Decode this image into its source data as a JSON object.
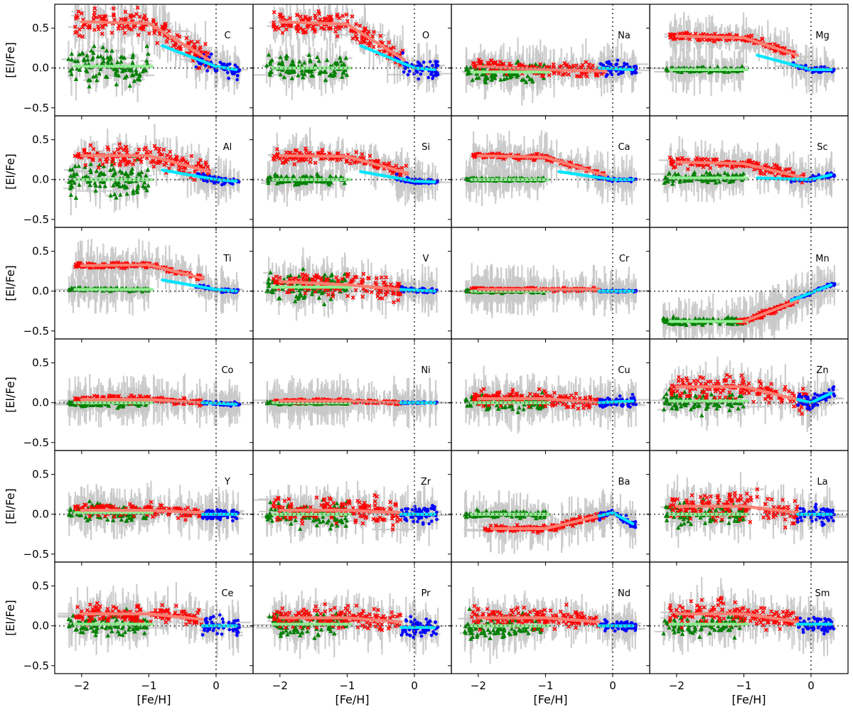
{
  "chart_data": {
    "type": "scatter",
    "layout": "6x4 grid of panels with shared axes",
    "xlabel": "[Fe/H]",
    "ylabel": "[El/Fe]",
    "xlim": [
      -2.4,
      0.55
    ],
    "ylim": [
      -0.6,
      0.8
    ],
    "xticks": [
      -2,
      -1,
      0
    ],
    "xtick_labels": [
      "−2",
      "−1",
      "0"
    ],
    "yticks": [
      -0.5,
      0.0,
      0.5
    ],
    "ytick_labels": [
      "−0.5",
      "0.0",
      "0.5"
    ],
    "reference_lines": {
      "x": 0,
      "y": 0,
      "style": "dotted"
    },
    "series": [
      {
        "name": "green triangles",
        "marker": "triangle",
        "color": "#008000",
        "feh_range": [
          -2.2,
          -1.0
        ]
      },
      {
        "name": "red crosses",
        "marker": "x",
        "color": "#ff0000",
        "feh_range": [
          -2.1,
          -0.15
        ]
      },
      {
        "name": "blue dots",
        "marker": "circle",
        "color": "#0000ff",
        "feh_range": [
          -0.3,
          0.35
        ]
      }
    ],
    "errorbar_color": "#c8c8c8",
    "trend_colors": {
      "red_fit": "#fa8072",
      "blue_fit": "#00e5ff",
      "green_fit": "#90ee90"
    },
    "panels": [
      {
        "element": "C",
        "red": {
          "knots": [
            [
              -2.0,
              0.58
            ],
            [
              -1.0,
              0.56
            ],
            [
              -0.1,
              0.1
            ]
          ],
          "scatter": 0.15
        },
        "blue": {
          "knots": [
            [
              -0.8,
              0.28
            ],
            [
              0.0,
              0.02
            ],
            [
              0.3,
              -0.02
            ]
          ],
          "scatter": 0.09
        },
        "green": {
          "level": 0.02,
          "scatter": 0.2
        }
      },
      {
        "element": "O",
        "red": {
          "knots": [
            [
              -2.0,
              0.58
            ],
            [
              -1.0,
              0.55
            ],
            [
              -0.15,
              0.1
            ]
          ],
          "scatter": 0.12
        },
        "blue": {
          "knots": [
            [
              -0.8,
              0.28
            ],
            [
              0.0,
              0.0
            ],
            [
              0.3,
              -0.02
            ]
          ],
          "scatter": 0.12
        },
        "green": {
          "level": 0.0,
          "scatter": 0.12
        }
      },
      {
        "element": "Na",
        "red": {
          "knots": [
            [
              -2.0,
              0.02
            ],
            [
              -1.0,
              -0.02
            ],
            [
              -0.1,
              -0.04
            ]
          ],
          "scatter": 0.08
        },
        "blue": {
          "knots": [
            [
              -0.2,
              0.0
            ],
            [
              0.3,
              -0.02
            ]
          ],
          "scatter": 0.07
        },
        "green": {
          "level": -0.05,
          "scatter": 0.1
        }
      },
      {
        "element": "Mg",
        "red": {
          "knots": [
            [
              -2.0,
              0.4
            ],
            [
              -1.0,
              0.38
            ],
            [
              -0.2,
              0.16
            ]
          ],
          "scatter": 0.04
        },
        "blue": {
          "knots": [
            [
              -0.8,
              0.16
            ],
            [
              0.0,
              -0.02
            ],
            [
              0.3,
              -0.02
            ]
          ],
          "scatter": 0.03
        },
        "green": {
          "level": -0.02,
          "scatter": 0.03
        }
      },
      {
        "element": "Al",
        "red": {
          "knots": [
            [
              -2.0,
              0.3
            ],
            [
              -1.0,
              0.3
            ],
            [
              -0.1,
              0.1
            ]
          ],
          "scatter": 0.12
        },
        "blue": {
          "knots": [
            [
              -0.8,
              0.12
            ],
            [
              0.0,
              0.0
            ],
            [
              0.3,
              -0.02
            ]
          ],
          "scatter": 0.04
        },
        "green": {
          "level": 0.0,
          "scatter": 0.2
        }
      },
      {
        "element": "Si",
        "red": {
          "knots": [
            [
              -2.0,
              0.3
            ],
            [
              -1.0,
              0.29
            ],
            [
              -0.1,
              0.08
            ]
          ],
          "scatter": 0.07
        },
        "blue": {
          "knots": [
            [
              -0.8,
              0.1
            ],
            [
              0.0,
              -0.02
            ],
            [
              0.3,
              -0.03
            ]
          ],
          "scatter": 0.03
        },
        "green": {
          "level": 0.0,
          "scatter": 0.06
        }
      },
      {
        "element": "Ca",
        "red": {
          "knots": [
            [
              -2.0,
              0.3
            ],
            [
              -1.0,
              0.28
            ],
            [
              -0.1,
              0.05
            ]
          ],
          "scatter": 0.03
        },
        "blue": {
          "knots": [
            [
              -0.8,
              0.1
            ],
            [
              0.0,
              0.0
            ],
            [
              0.3,
              0.0
            ]
          ],
          "scatter": 0.02
        },
        "green": {
          "level": 0.0,
          "scatter": 0.02
        }
      },
      {
        "element": "Sc",
        "red": {
          "knots": [
            [
              -2.0,
              0.22
            ],
            [
              -1.0,
              0.2
            ],
            [
              -0.1,
              0.02
            ]
          ],
          "scatter": 0.06
        },
        "blue": {
          "knots": [
            [
              -0.8,
              0.02
            ],
            [
              0.0,
              0.0
            ],
            [
              0.3,
              0.06
            ]
          ],
          "scatter": 0.03
        },
        "green": {
          "level": 0.02,
          "scatter": 0.06
        }
      },
      {
        "element": "Ti",
        "red": {
          "knots": [
            [
              -2.0,
              0.32
            ],
            [
              -1.0,
              0.33
            ],
            [
              -0.2,
              0.16
            ]
          ],
          "scatter": 0.03
        },
        "blue": {
          "knots": [
            [
              -0.8,
              0.14
            ],
            [
              0.0,
              0.02
            ],
            [
              0.3,
              0.0
            ]
          ],
          "scatter": 0.02
        },
        "green": {
          "level": 0.02,
          "scatter": 0.02
        }
      },
      {
        "element": "V",
        "red": {
          "knots": [
            [
              -2.0,
              0.12
            ],
            [
              -1.0,
              0.08
            ],
            [
              -0.2,
              0.02
            ]
          ],
          "scatter": 0.14
        },
        "blue": {
          "knots": [
            [
              -0.2,
              0.02
            ],
            [
              0.3,
              0.0
            ]
          ],
          "scatter": 0.03
        },
        "green": {
          "level": 0.05,
          "scatter": 0.15
        }
      },
      {
        "element": "Cr",
        "red": {
          "knots": [
            [
              -2.0,
              0.02
            ],
            [
              -1.0,
              0.02
            ],
            [
              -0.2,
              0.02
            ]
          ],
          "scatter": 0.02
        },
        "blue": {
          "knots": [
            [
              -0.2,
              0.0
            ],
            [
              0.3,
              0.0
            ]
          ],
          "scatter": 0.01
        },
        "green": {
          "level": 0.0,
          "scatter": 0.02
        }
      },
      {
        "element": "Mn",
        "red": {
          "knots": [
            [
              -1.0,
              -0.38
            ],
            [
              -0.2,
              -0.12
            ]
          ],
          "scatter": 0.03
        },
        "blue": {
          "knots": [
            [
              -0.3,
              -0.12
            ],
            [
              0.0,
              -0.02
            ],
            [
              0.3,
              0.08
            ]
          ],
          "scatter": 0.02
        },
        "green": {
          "level": -0.38,
          "scatter": 0.04
        }
      },
      {
        "element": "Co",
        "red": {
          "knots": [
            [
              -2.0,
              0.04
            ],
            [
              -1.0,
              0.04
            ],
            [
              -0.2,
              0.0
            ]
          ],
          "scatter": 0.04
        },
        "blue": {
          "knots": [
            [
              -0.2,
              0.0
            ],
            [
              0.3,
              -0.02
            ]
          ],
          "scatter": 0.02
        },
        "green": {
          "level": 0.0,
          "scatter": 0.04
        }
      },
      {
        "element": "Ni",
        "red": {
          "knots": [
            [
              -2.0,
              0.02
            ],
            [
              -1.0,
              0.02
            ],
            [
              -0.2,
              0.0
            ]
          ],
          "scatter": 0.02
        },
        "blue": {
          "knots": [
            [
              -0.2,
              0.0
            ],
            [
              0.3,
              0.0
            ]
          ],
          "scatter": 0.01
        },
        "green": {
          "level": 0.0,
          "scatter": 0.02
        }
      },
      {
        "element": "Cu",
        "red": {
          "knots": [
            [
              -2.0,
              0.05
            ],
            [
              -1.0,
              0.05
            ],
            [
              -0.2,
              0.0
            ]
          ],
          "scatter": 0.08
        },
        "blue": {
          "knots": [
            [
              -0.2,
              0.0
            ],
            [
              0.3,
              0.02
            ]
          ],
          "scatter": 0.06
        },
        "green": {
          "level": 0.0,
          "scatter": 0.08
        }
      },
      {
        "element": "Zn",
        "red": {
          "knots": [
            [
              -2.0,
              0.2
            ],
            [
              -1.0,
              0.2
            ],
            [
              0.0,
              0.0
            ]
          ],
          "scatter": 0.13
        },
        "blue": {
          "knots": [
            [
              -0.2,
              0.04
            ],
            [
              0.0,
              0.0
            ],
            [
              0.3,
              0.12
            ]
          ],
          "scatter": 0.08
        },
        "green": {
          "level": 0.02,
          "scatter": 0.12
        }
      },
      {
        "element": "Y",
        "red": {
          "knots": [
            [
              -2.0,
              0.05
            ],
            [
              -1.0,
              0.05
            ],
            [
              -0.2,
              0.02
            ]
          ],
          "scatter": 0.07
        },
        "blue": {
          "knots": [
            [
              -0.2,
              0.0
            ],
            [
              0.3,
              0.0
            ]
          ],
          "scatter": 0.06
        },
        "green": {
          "level": 0.02,
          "scatter": 0.09
        }
      },
      {
        "element": "Zr",
        "red": {
          "knots": [
            [
              -2.0,
              0.05
            ],
            [
              -1.0,
              0.05
            ],
            [
              -0.2,
              0.02
            ]
          ],
          "scatter": 0.13
        },
        "blue": {
          "knots": [
            [
              -0.2,
              0.0
            ],
            [
              0.3,
              0.0
            ]
          ],
          "scatter": 0.09
        },
        "green": {
          "level": 0.0,
          "scatter": 0.14
        }
      },
      {
        "element": "Ba",
        "red": {
          "knots": [
            [
              -1.8,
              -0.18
            ],
            [
              -1.0,
              -0.18
            ],
            [
              -0.1,
              0.0
            ]
          ],
          "scatter": 0.04
        },
        "blue": {
          "knots": [
            [
              -0.2,
              -0.02
            ],
            [
              0.0,
              0.02
            ],
            [
              0.3,
              -0.12
            ]
          ],
          "scatter": 0.04
        },
        "green": {
          "level": 0.0,
          "scatter": 0.04
        }
      },
      {
        "element": "La",
        "red": {
          "knots": [
            [
              -2.0,
              0.1
            ],
            [
              -1.0,
              0.1
            ],
            [
              -0.2,
              0.02
            ]
          ],
          "scatter": 0.15
        },
        "blue": {
          "knots": [
            [
              -0.2,
              0.0
            ],
            [
              0.3,
              0.0
            ]
          ],
          "scatter": 0.1
        },
        "green": {
          "level": 0.0,
          "scatter": 0.12
        }
      },
      {
        "element": "Ce",
        "red": {
          "knots": [
            [
              -2.0,
              0.15
            ],
            [
              -1.0,
              0.15
            ],
            [
              -0.2,
              0.08
            ]
          ],
          "scatter": 0.11
        },
        "blue": {
          "knots": [
            [
              -0.2,
              0.0
            ],
            [
              0.3,
              0.0
            ]
          ],
          "scatter": 0.1
        },
        "green": {
          "level": 0.02,
          "scatter": 0.12
        }
      },
      {
        "element": "Pr",
        "red": {
          "knots": [
            [
              -2.0,
              0.1
            ],
            [
              -1.0,
              0.1
            ],
            [
              -0.2,
              0.05
            ]
          ],
          "scatter": 0.13
        },
        "blue": {
          "knots": [
            [
              -0.2,
              -0.02
            ],
            [
              0.3,
              -0.02
            ]
          ],
          "scatter": 0.1
        },
        "green": {
          "level": 0.02,
          "scatter": 0.12
        }
      },
      {
        "element": "Nd",
        "red": {
          "knots": [
            [
              -2.0,
              0.1
            ],
            [
              -1.0,
              0.1
            ],
            [
              -0.2,
              0.05
            ]
          ],
          "scatter": 0.11
        },
        "blue": {
          "knots": [
            [
              -0.2,
              0.0
            ],
            [
              0.3,
              0.0
            ]
          ],
          "scatter": 0.06
        },
        "green": {
          "level": 0.0,
          "scatter": 0.13
        }
      },
      {
        "element": "Sm",
        "red": {
          "knots": [
            [
              -2.0,
              0.15
            ],
            [
              -1.0,
              0.15
            ],
            [
              -0.2,
              0.05
            ]
          ],
          "scatter": 0.13
        },
        "blue": {
          "knots": [
            [
              -0.2,
              0.02
            ],
            [
              0.3,
              0.02
            ]
          ],
          "scatter": 0.09
        },
        "green": {
          "level": 0.02,
          "scatter": 0.13
        }
      }
    ]
  }
}
